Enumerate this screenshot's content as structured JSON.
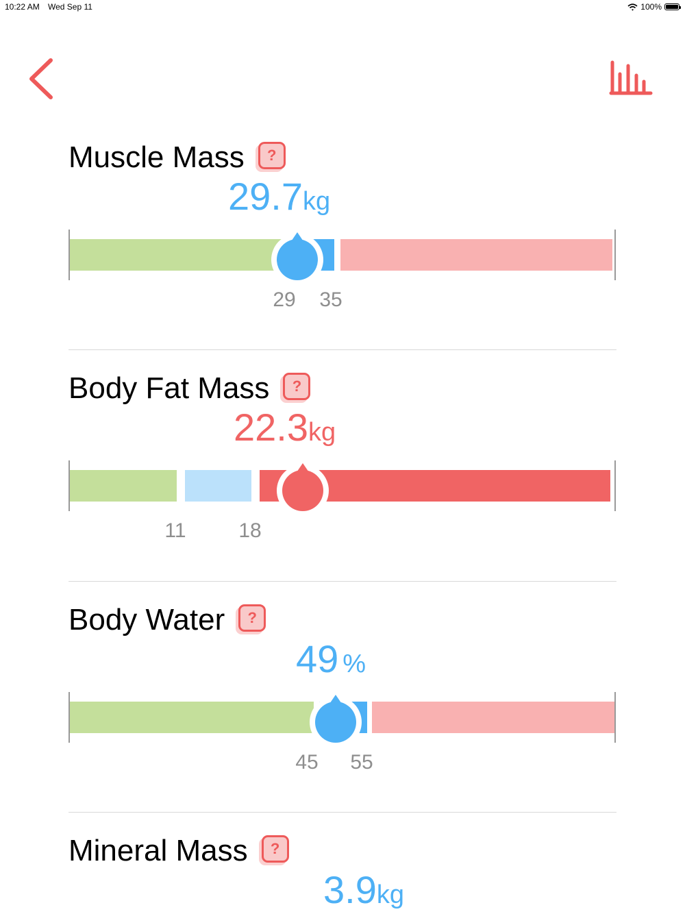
{
  "status_bar": {
    "time": "10:22 AM",
    "date": "Wed Sep 11",
    "battery": "100%",
    "battery_level": 1.0,
    "wifi_icon": "wifi-icon"
  },
  "nav": {
    "back_icon": "chevron-left-icon",
    "chart_icon": "bar-chart-icon",
    "accent_color": "#ee5a5a"
  },
  "help_label": "?",
  "metrics": [
    {
      "title": "Muscle Mass",
      "value": "29.7",
      "unit": "kg",
      "value_color": "#4db0f5",
      "ticks": [
        "29",
        "35"
      ],
      "marker_color": "#4db0f5"
    },
    {
      "title": "Body Fat Mass",
      "value": "22.3",
      "unit": "kg",
      "value_color": "#f06464",
      "ticks": [
        "11",
        "18"
      ],
      "marker_color": "#f06464"
    },
    {
      "title": "Body Water",
      "value": "49",
      "unit": "%",
      "value_color": "#4db0f5",
      "ticks": [
        "45",
        "55"
      ],
      "marker_color": "#4db0f5"
    },
    {
      "title": "Mineral Mass",
      "value": "3.9",
      "unit": "kg",
      "value_color": "#4db0f5"
    }
  ],
  "colors": {
    "green": "#c4df9b",
    "light_blue": "#bbe1fb",
    "blue": "#4db0f5",
    "light_red": "#f9b1b1",
    "red": "#f06464"
  }
}
